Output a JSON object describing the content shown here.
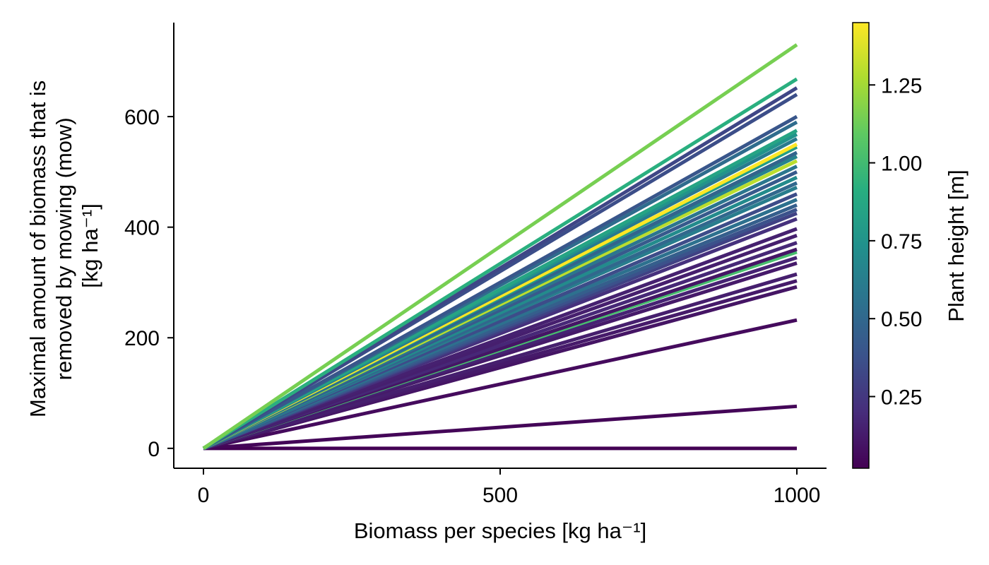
{
  "chart_data": {
    "type": "line",
    "title": "",
    "xlabel": "Biomass per species [kg ha⁻¹]",
    "ylabel_lines": [
      "Maximal amount of biomass that is",
      "removed by mowing (mow)",
      "[kg ha⁻¹]"
    ],
    "xlim": [
      -50,
      1050
    ],
    "ylim": [
      -36,
      770
    ],
    "x_ticks": [
      0,
      500,
      1000
    ],
    "x_tick_labels": [
      "0",
      "500",
      "1000"
    ],
    "y_ticks": [
      0,
      200,
      400,
      600
    ],
    "y_tick_labels": [
      "0",
      "200",
      "400",
      "600"
    ],
    "grid": false,
    "colormap": "viridis",
    "colorbar": {
      "label": "Plant height [m]",
      "range": [
        0.02,
        1.45
      ],
      "ticks": [
        0.25,
        0.5,
        0.75,
        1.0,
        1.25
      ],
      "tick_labels": [
        "0.25",
        "0.50",
        "0.75",
        "1.00",
        "1.25"
      ]
    },
    "line_x": [
      0,
      1000
    ],
    "series": [
      {
        "slope": 0.0,
        "height": 0.02
      },
      {
        "slope": 0.076,
        "height": 0.04
      },
      {
        "slope": 0.232,
        "height": 0.06
      },
      {
        "slope": 0.292,
        "height": 0.1
      },
      {
        "slope": 0.303,
        "height": 0.12
      },
      {
        "slope": 0.315,
        "height": 0.14
      },
      {
        "slope": 0.335,
        "height": 0.12
      },
      {
        "slope": 0.345,
        "height": 0.16
      },
      {
        "slope": 0.355,
        "height": 1.02
      },
      {
        "slope": 0.36,
        "height": 0.1
      },
      {
        "slope": 0.372,
        "height": 0.18
      },
      {
        "slope": 0.385,
        "height": 0.14
      },
      {
        "slope": 0.397,
        "height": 0.15
      },
      {
        "slope": 0.415,
        "height": 0.22
      },
      {
        "slope": 0.425,
        "height": 0.3
      },
      {
        "slope": 0.432,
        "height": 0.38
      },
      {
        "slope": 0.44,
        "height": 0.45
      },
      {
        "slope": 0.45,
        "height": 0.55
      },
      {
        "slope": 0.46,
        "height": 0.35
      },
      {
        "slope": 0.472,
        "height": 0.62
      },
      {
        "slope": 0.48,
        "height": 0.5
      },
      {
        "slope": 0.49,
        "height": 0.7
      },
      {
        "slope": 0.5,
        "height": 0.42
      },
      {
        "slope": 0.51,
        "height": 0.58
      },
      {
        "slope": 0.52,
        "height": 1.3
      },
      {
        "slope": 0.528,
        "height": 0.66
      },
      {
        "slope": 0.535,
        "height": 0.48
      },
      {
        "slope": 0.545,
        "height": 0.8
      },
      {
        "slope": 0.55,
        "height": 1.45
      },
      {
        "slope": 0.56,
        "height": 0.6
      },
      {
        "slope": 0.568,
        "height": 0.75
      },
      {
        "slope": 0.575,
        "height": 0.85
      },
      {
        "slope": 0.59,
        "height": 0.52
      },
      {
        "slope": 0.6,
        "height": 0.4
      },
      {
        "slope": 0.64,
        "height": 0.36
      },
      {
        "slope": 0.652,
        "height": 0.32
      },
      {
        "slope": 0.668,
        "height": 0.92
      },
      {
        "slope": 0.73,
        "height": 1.15
      }
    ]
  }
}
